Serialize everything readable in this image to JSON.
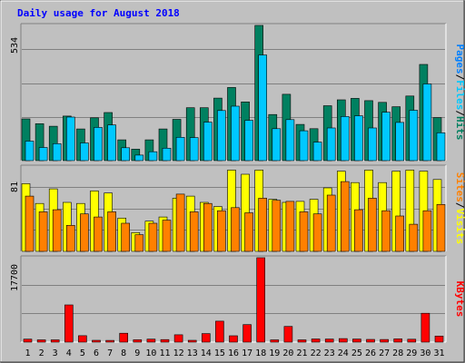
{
  "title": "Daily usage for August 2018",
  "chart_data": [
    {
      "type": "bar",
      "panel": "hits-files-pages",
      "ymax_label": "534",
      "ylim": [
        0,
        534
      ],
      "categories": [
        "1",
        "2",
        "3",
        "4",
        "5",
        "6",
        "7",
        "8",
        "9",
        "10",
        "11",
        "12",
        "13",
        "14",
        "15",
        "16",
        "17",
        "18",
        "19",
        "20",
        "21",
        "22",
        "23",
        "24",
        "25",
        "26",
        "27",
        "28",
        "29",
        "30",
        "31"
      ],
      "series": [
        {
          "name": "Hits",
          "color": "#008060",
          "values": [
            165,
            146,
            136,
            176,
            125,
            169,
            190,
            82,
            45,
            82,
            125,
            163,
            209,
            209,
            247,
            289,
            232,
            534,
            182,
            262,
            143,
            126,
            217,
            240,
            246,
            237,
            230,
            213,
            255,
            380,
            170
          ]
        },
        {
          "name": "Files",
          "color": "#00c8ff",
          "values": [
            77,
            52,
            67,
            172,
            70,
            131,
            141,
            51,
            22,
            35,
            49,
            92,
            91,
            152,
            198,
            215,
            159,
            417,
            126,
            162,
            118,
            73,
            129,
            174,
            177,
            129,
            191,
            151,
            199,
            303,
            110
          ]
        },
        {
          "name": "Pages",
          "color": "#0080ff",
          "values": [
            0,
            0,
            0,
            0,
            0,
            0,
            0,
            0,
            0,
            0,
            0,
            0,
            0,
            0,
            0,
            0,
            0,
            0,
            0,
            0,
            0,
            0,
            0,
            0,
            0,
            0,
            0,
            0,
            0,
            0,
            0
          ]
        }
      ],
      "legend": [
        "Pages",
        "/",
        "Files",
        "/",
        "Hits"
      ],
      "grid": true
    },
    {
      "type": "bar",
      "panel": "visits-sites",
      "ymax_label": "81",
      "ylim": [
        0,
        81
      ],
      "categories": [
        "1",
        "2",
        "3",
        "4",
        "5",
        "6",
        "7",
        "8",
        "9",
        "10",
        "11",
        "12",
        "13",
        "14",
        "15",
        "16",
        "17",
        "18",
        "19",
        "20",
        "21",
        "22",
        "23",
        "24",
        "25",
        "26",
        "27",
        "28",
        "29",
        "30",
        "31"
      ],
      "series": [
        {
          "name": "Visits",
          "color": "#ffff00",
          "values": [
            65,
            46,
            60,
            47,
            46,
            58,
            56,
            32,
            18,
            29,
            33,
            51,
            53,
            47,
            43,
            78,
            74,
            78,
            50,
            47,
            48,
            50,
            61,
            77,
            66,
            78,
            66,
            77,
            78,
            77,
            69
          ]
        },
        {
          "name": "Sites",
          "color": "#ff8000",
          "values": [
            53,
            38,
            40,
            25,
            36,
            33,
            38,
            27,
            16,
            27,
            30,
            55,
            38,
            46,
            39,
            42,
            37,
            51,
            49,
            48,
            38,
            36,
            54,
            67,
            40,
            51,
            39,
            34,
            26,
            39,
            45
          ]
        }
      ],
      "legend": [
        "Sites",
        "/",
        "Visits"
      ],
      "grid": true
    },
    {
      "type": "bar",
      "panel": "kbytes",
      "ymax_label": "17700",
      "ylim": [
        0,
        17700
      ],
      "categories": [
        "1",
        "2",
        "3",
        "4",
        "5",
        "6",
        "7",
        "8",
        "9",
        "10",
        "11",
        "12",
        "13",
        "14",
        "15",
        "16",
        "17",
        "18",
        "19",
        "20",
        "21",
        "22",
        "23",
        "24",
        "25",
        "26",
        "27",
        "28",
        "29",
        "30",
        "31"
      ],
      "series": [
        {
          "name": "KBytes",
          "color": "#ff0000",
          "values": [
            620,
            480,
            480,
            7800,
            1350,
            390,
            370,
            1860,
            500,
            620,
            530,
            1550,
            380,
            1790,
            4390,
            1330,
            3670,
            17700,
            470,
            3300,
            480,
            670,
            650,
            750,
            650,
            570,
            560,
            690,
            610,
            6050,
            1280
          ]
        }
      ],
      "legend": [
        "KBytes"
      ],
      "grid": true
    }
  ],
  "x_labels": {
    "weekend_color": "#008040",
    "weekday_color": "#000000",
    "weekend_days": [
      "4",
      "5",
      "11",
      "12",
      "18",
      "19",
      "25",
      "26"
    ]
  }
}
